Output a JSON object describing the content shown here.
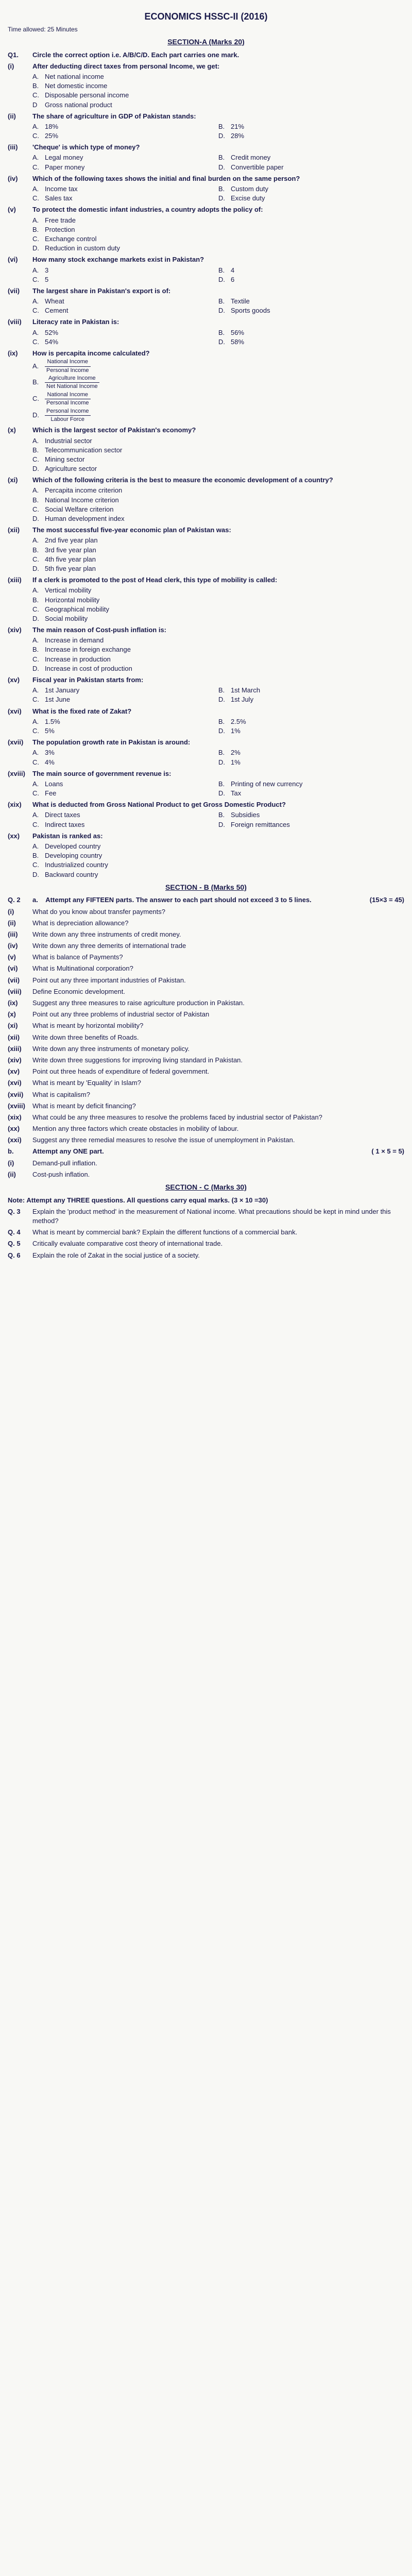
{
  "header": "ECONOMICS HSSC-II (2016)",
  "time": "Time allowed: 25 Minutes",
  "sectionA": {
    "title": "SECTION-A (Marks 20)",
    "q1_instruction": "Circle the correct option i.e. A/B/C/D. Each part carries one mark.",
    "questions": [
      {
        "num": "(i)",
        "text": "After deducting direct taxes from personal Income, we get:",
        "options": [
          {
            "l": "A.",
            "t": "Net national income"
          },
          {
            "l": "B.",
            "t": "Net domestic income"
          },
          {
            "l": "C.",
            "t": "Disposable personal income"
          },
          {
            "l": "D",
            "t": "Gross national product"
          }
        ],
        "layout": "full"
      },
      {
        "num": "(ii)",
        "text": "The share of agriculture in GDP of Pakistan stands:",
        "options": [
          {
            "l": "A.",
            "t": "18%"
          },
          {
            "l": "B.",
            "t": "21%"
          },
          {
            "l": "C.",
            "t": "25%"
          },
          {
            "l": "D.",
            "t": "28%"
          }
        ]
      },
      {
        "num": "(iii)",
        "text": "'Cheque' is which type of money?",
        "options": [
          {
            "l": "A.",
            "t": "Legal money"
          },
          {
            "l": "B.",
            "t": "Credit money"
          },
          {
            "l": "C.",
            "t": "Paper money"
          },
          {
            "l": "D.",
            "t": "Convertible paper"
          }
        ]
      },
      {
        "num": "(iv)",
        "text": "Which of the following taxes shows the initial and final burden on the same person?",
        "options": [
          {
            "l": "A.",
            "t": "Income tax"
          },
          {
            "l": "B.",
            "t": "Custom duty"
          },
          {
            "l": "C.",
            "t": "Sales tax"
          },
          {
            "l": "D.",
            "t": "Excise duty"
          }
        ]
      },
      {
        "num": "(v)",
        "text": "To protect the domestic infant industries, a country adopts the policy of:",
        "options": [
          {
            "l": "A.",
            "t": "Free trade"
          },
          {
            "l": "B.",
            "t": "Protection"
          },
          {
            "l": "C.",
            "t": "Exchange control"
          },
          {
            "l": "D.",
            "t": "Reduction in custom duty"
          }
        ],
        "layout": "full"
      },
      {
        "num": "(vi)",
        "text": "How many stock exchange markets exist in Pakistan?",
        "options": [
          {
            "l": "A.",
            "t": "3"
          },
          {
            "l": "B.",
            "t": "4"
          },
          {
            "l": "C.",
            "t": "5"
          },
          {
            "l": "D.",
            "t": "6"
          }
        ]
      },
      {
        "num": "(vii)",
        "text": "The largest share in Pakistan's export is of:",
        "options": [
          {
            "l": "A.",
            "t": "Wheat"
          },
          {
            "l": "B.",
            "t": "Textile"
          },
          {
            "l": "C.",
            "t": "Cement"
          },
          {
            "l": "D.",
            "t": "Sports goods"
          }
        ]
      },
      {
        "num": "(viii)",
        "text": "Literacy rate in Pakistan is:",
        "options": [
          {
            "l": "A.",
            "t": "52%"
          },
          {
            "l": "B.",
            "t": "56%"
          },
          {
            "l": "C.",
            "t": "54%"
          },
          {
            "l": "D.",
            "t": "58%"
          }
        ]
      },
      {
        "num": "(ix)",
        "text": "How is percapita income calculated?",
        "fractions": [
          {
            "l": "A.",
            "top": "National Income",
            "bottom": "Personal Income"
          },
          {
            "l": "B.",
            "top": "Agriculture Income",
            "bottom": "Net National Income"
          },
          {
            "l": "C.",
            "top": "National Income",
            "bottom": "Personal Income"
          },
          {
            "l": "D.",
            "top": "Personal Income",
            "bottom": "Labour Force"
          }
        ]
      },
      {
        "num": "(x)",
        "text": "Which is the largest sector of Pakistan's economy?",
        "options": [
          {
            "l": "A.",
            "t": "Industrial sector"
          },
          {
            "l": "B.",
            "t": "Telecommunication sector"
          },
          {
            "l": "C.",
            "t": "Mining sector"
          },
          {
            "l": "D.",
            "t": "Agriculture sector"
          }
        ],
        "layout": "full"
      },
      {
        "num": "(xi)",
        "text": "Which of the following criteria is the best to measure the economic development of a country?",
        "options": [
          {
            "l": "A.",
            "t": "Percapita income criterion"
          },
          {
            "l": "B.",
            "t": "National Income criterion"
          },
          {
            "l": "C.",
            "t": "Social Welfare criterion"
          },
          {
            "l": "D.",
            "t": "Human development index"
          }
        ],
        "layout": "full"
      },
      {
        "num": "(xii)",
        "text": "The most successful five-year economic plan of Pakistan was:",
        "options": [
          {
            "l": "A.",
            "t": "2nd five year plan"
          },
          {
            "l": "B.",
            "t": "3rd five year plan"
          },
          {
            "l": "C.",
            "t": "4th five year plan"
          },
          {
            "l": "D.",
            "t": "5th five year plan"
          }
        ],
        "layout": "full"
      },
      {
        "num": "(xiii)",
        "text": "If a clerk is promoted to the post of Head clerk, this type of mobility is called:",
        "options": [
          {
            "l": "A.",
            "t": "Vertical mobility"
          },
          {
            "l": "B.",
            "t": "Horizontal mobility"
          },
          {
            "l": "C.",
            "t": "Geographical mobility"
          },
          {
            "l": "D.",
            "t": "Social mobility"
          }
        ],
        "layout": "full"
      },
      {
        "num": "(xiv)",
        "text": "The main reason of Cost-push inflation is:",
        "options": [
          {
            "l": "A.",
            "t": "Increase in demand"
          },
          {
            "l": "B.",
            "t": "Increase in foreign exchange"
          },
          {
            "l": "C.",
            "t": "Increase in production"
          },
          {
            "l": "D.",
            "t": "Increase in cost of production"
          }
        ],
        "layout": "full"
      },
      {
        "num": "(xv)",
        "text": "Fiscal year in Pakistan starts from:",
        "options": [
          {
            "l": "A.",
            "t": "1st January"
          },
          {
            "l": "B.",
            "t": "1st March"
          },
          {
            "l": "C.",
            "t": "1st June"
          },
          {
            "l": "D.",
            "t": "1st July"
          }
        ]
      },
      {
        "num": "(xvi)",
        "text": "What is the fixed rate of Zakat?",
        "options": [
          {
            "l": "A.",
            "t": "1.5%"
          },
          {
            "l": "B.",
            "t": "2.5%"
          },
          {
            "l": "C.",
            "t": "5%"
          },
          {
            "l": "D.",
            "t": "1%"
          }
        ]
      },
      {
        "num": "(xvii)",
        "text": "The population growth rate in Pakistan is around:",
        "options": [
          {
            "l": "A.",
            "t": "3%"
          },
          {
            "l": "B.",
            "t": "2%"
          },
          {
            "l": "C.",
            "t": "4%"
          },
          {
            "l": "D.",
            "t": "1%"
          }
        ]
      },
      {
        "num": "(xviii)",
        "text": "The main source of government revenue is:",
        "options": [
          {
            "l": "A.",
            "t": "Loans"
          },
          {
            "l": "B.",
            "t": "Printing of new currency"
          },
          {
            "l": "C.",
            "t": "Fee"
          },
          {
            "l": "D.",
            "t": "Tax"
          }
        ]
      },
      {
        "num": "(xix)",
        "text": "What is deducted from Gross National Product to get Gross Domestic Product?",
        "options": [
          {
            "l": "A.",
            "t": "Direct taxes"
          },
          {
            "l": "B.",
            "t": "Subsidies"
          },
          {
            "l": "C.",
            "t": "Indirect taxes"
          },
          {
            "l": "D.",
            "t": "Foreign remittances"
          }
        ]
      },
      {
        "num": "(xx)",
        "text": "Pakistan is ranked as:",
        "options": [
          {
            "l": "A.",
            "t": "Developed country"
          },
          {
            "l": "B.",
            "t": "Developing country"
          },
          {
            "l": "C.",
            "t": "Industrialized country"
          },
          {
            "l": "D.",
            "t": "Backward country"
          }
        ],
        "layout": "full"
      }
    ]
  },
  "sectionB": {
    "title": "SECTION - B (Marks 50)",
    "q2a": "Attempt any FIFTEEN parts. The answer to each part should not exceed 3 to 5 lines.",
    "q2a_marks": "(15×3 = 45)",
    "questions": [
      {
        "num": "(i)",
        "text": "What do you know about transfer payments?"
      },
      {
        "num": "(ii)",
        "text": "What is depreciation allowance?"
      },
      {
        "num": "(iii)",
        "text": "Write down any three instruments of credit money."
      },
      {
        "num": "(iv)",
        "text": "Write down any three demerits of international trade"
      },
      {
        "num": "(v)",
        "text": "What is balance of Payments?"
      },
      {
        "num": "(vi)",
        "text": "What is Multinational corporation?"
      },
      {
        "num": "(vii)",
        "text": "Point out any three important industries of Pakistan."
      },
      {
        "num": "(viii)",
        "text": "Define Economic development."
      },
      {
        "num": "(ix)",
        "text": "Suggest any three measures to raise agriculture production in Pakistan."
      },
      {
        "num": "(x)",
        "text": "Point out any three problems of industrial sector of Pakistan"
      },
      {
        "num": "(xi)",
        "text": "What is meant by horizontal mobility?"
      },
      {
        "num": "(xii)",
        "text": "Write down three benefits of Roads."
      },
      {
        "num": "(xiii)",
        "text": "Write down any three instruments of monetary policy."
      },
      {
        "num": "(xiv)",
        "text": "Write down three suggestions for improving living standard in Pakistan."
      },
      {
        "num": "(xv)",
        "text": "Point out three heads of expenditure of federal government."
      },
      {
        "num": "(xvi)",
        "text": "What is meant by 'Equality' in Islam?"
      },
      {
        "num": "(xvii)",
        "text": "What is capitalism?"
      },
      {
        "num": "(xviii)",
        "text": "What is meant by deficit financing?"
      },
      {
        "num": "(xix)",
        "text": "What could be any three measures to resolve the problems faced by industrial sector of Pakistan?"
      },
      {
        "num": "(xx)",
        "text": "Mention any three factors which create obstacles in mobility of labour."
      },
      {
        "num": "(xxi)",
        "text": "Suggest any three remedial measures to resolve the issue of unemployment in Pakistan."
      }
    ],
    "b_text": "Attempt any ONE part.",
    "b_marks": "( 1 × 5 = 5)",
    "b_options": [
      {
        "num": "(i)",
        "text": "Demand-pull inflation."
      },
      {
        "num": "(ii)",
        "text": "Cost-push inflation."
      }
    ]
  },
  "sectionC": {
    "title": "SECTION - C (Marks 30)",
    "note": "Attempt any THREE questions. All questions carry equal marks. (3 × 10 =30)",
    "questions": [
      {
        "num": "Q. 3",
        "text": "Explain the 'product method' in the measurement of National income. What precautions should be kept in mind under this method?"
      },
      {
        "num": "Q. 4",
        "text": "What is meant by commercial bank? Explain the different functions of a commercial bank."
      },
      {
        "num": "Q. 5",
        "text": "Critically evaluate comparative cost theory of international trade."
      },
      {
        "num": "Q. 6",
        "text": "Explain the role of Zakat in the social justice of a society."
      }
    ]
  }
}
